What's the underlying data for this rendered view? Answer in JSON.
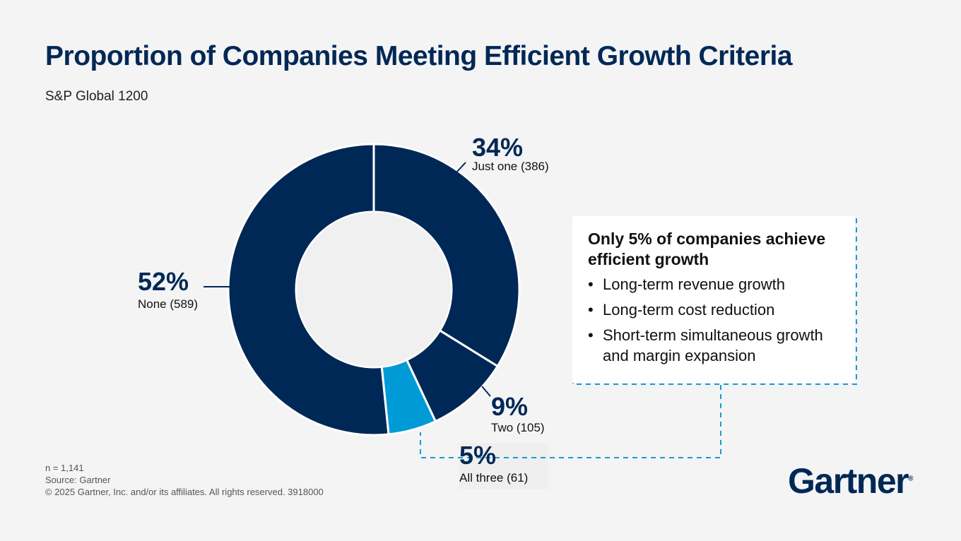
{
  "title": "Proportion of Companies Meeting Efficient Growth Criteria",
  "subtitle": "S&P Global 1200",
  "chart_data": {
    "type": "pie",
    "variant": "donut",
    "title": "Proportion of Companies Meeting Efficient Growth Criteria",
    "subtitle": "S&P Global 1200",
    "slices": [
      {
        "label": "Just one",
        "count": 386,
        "percent": "34%",
        "color": "#002856"
      },
      {
        "label": "Two",
        "count": 105,
        "percent": "9%",
        "color": "#002856"
      },
      {
        "label": "All three",
        "count": 61,
        "percent": "5%",
        "color": "#009ad7"
      },
      {
        "label": "None",
        "count": 589,
        "percent": "52%",
        "color": "#002856"
      }
    ],
    "labels": {
      "just_one": {
        "pct": "34%",
        "text": "Just one (386)"
      },
      "two": {
        "pct": "9%",
        "text": "Two (105)"
      },
      "all_three": {
        "pct": "5%",
        "text": "All three (61)"
      },
      "none": {
        "pct": "52%",
        "text": "None (589)"
      }
    }
  },
  "callout": {
    "heading": "Only 5% of companies achieve efficient growth",
    "items": [
      "Long-term revenue growth",
      "Long-term cost reduction",
      "Short-term simultaneous growth and margin expansion"
    ],
    "border_color": "#1a9ad6"
  },
  "footer": {
    "n": "n = 1,141",
    "source": "Source: Gartner",
    "copyright": "© 2025 Gartner, Inc. and/or its affiliates. All rights reserved. 3918000"
  },
  "logo": "Gartner"
}
